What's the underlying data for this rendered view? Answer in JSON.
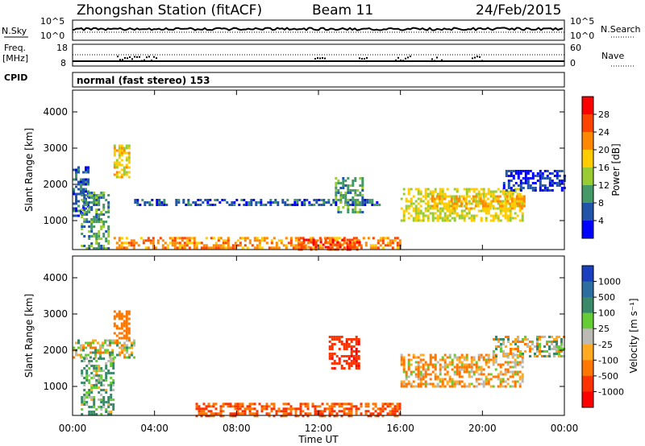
{
  "header": {
    "station": "Zhongshan Station (fitACF)",
    "beam": "Beam 11",
    "date": "24/Feb/2015"
  },
  "top_panels": {
    "nsky_label": "N.Sky",
    "nsearch_label": "N.Search",
    "left_scale_top": "10^5",
    "left_scale_bottom": "10^0",
    "right_scale_top": "10^5",
    "right_scale_bottom": "10^0",
    "freq_label": "Freq.",
    "freq_unit": "[MHz]",
    "freq_top": "18",
    "freq_bottom": "8",
    "nave_label": "Nave",
    "nave_top": "60",
    "nave_bottom": "0",
    "cpid_label": "CPID",
    "cpid_text": "normal (fast stereo) 153"
  },
  "colorbars": {
    "power": {
      "label": "Power [dB]",
      "ticks": [
        "28",
        "24",
        "20",
        "16",
        "12",
        "8",
        "4"
      ],
      "colors": [
        "#ff0000",
        "#ff4400",
        "#ff8800",
        "#ffcc00",
        "#99cc33",
        "#449966",
        "#2255aa",
        "#0000ff"
      ]
    },
    "velocity": {
      "label": "Velocity [m s⁻¹]",
      "ticks": [
        "1000",
        "500",
        "100",
        "25",
        "-25",
        "-100",
        "-500",
        "-1000"
      ],
      "colors": [
        "#1a3fbf",
        "#2d6ea0",
        "#3a8a6a",
        "#66cc33",
        "#bbbbb3",
        "#ffaa22",
        "#ff7700",
        "#ff3300",
        "#ff0000"
      ]
    }
  },
  "chart_data": [
    {
      "type": "heatmap",
      "name": "Power",
      "xlabel": "",
      "ylabel": "Slant Range [km]",
      "yticks": [
        1000,
        2000,
        3000,
        4000
      ],
      "ylim": [
        200,
        4600
      ],
      "xlim_hours": [
        0,
        24
      ],
      "xticks": [
        "00:00",
        "04:00",
        "08:00",
        "12:00",
        "16:00",
        "20:00",
        "00:00"
      ],
      "echo_regions": [
        {
          "t0": 0.0,
          "t1": 0.8,
          "r0": 1100,
          "r1": 2500,
          "value": 8
        },
        {
          "t0": 0.4,
          "t1": 1.8,
          "r0": 200,
          "r1": 1800,
          "value": 12
        },
        {
          "t0": 2.0,
          "t1": 2.8,
          "r0": 2200,
          "r1": 3100,
          "value": 20
        },
        {
          "t0": 3.0,
          "t1": 15.0,
          "r0": 1400,
          "r1": 1600,
          "value": 8
        },
        {
          "t0": 2.0,
          "t1": 16.0,
          "r0": 250,
          "r1": 550,
          "value": 24
        },
        {
          "t0": 11.0,
          "t1": 14.0,
          "r0": 200,
          "r1": 500,
          "value": 28
        },
        {
          "t0": 12.8,
          "t1": 14.2,
          "r0": 1200,
          "r1": 2200,
          "value": 12
        },
        {
          "t0": 16.0,
          "t1": 22.0,
          "r0": 1000,
          "r1": 1900,
          "value": 18
        },
        {
          "t0": 17.5,
          "t1": 22.0,
          "r0": 1300,
          "r1": 1700,
          "value": 22
        },
        {
          "t0": 21.0,
          "t1": 24.0,
          "r0": 1800,
          "r1": 2400,
          "value": 6
        }
      ]
    },
    {
      "type": "heatmap",
      "name": "Velocity",
      "xlabel": "Time UT",
      "ylabel": "Slant Range [km]",
      "yticks": [
        1000,
        2000,
        3000,
        4000
      ],
      "ylim": [
        200,
        4600
      ],
      "xlim_hours": [
        0,
        24
      ],
      "xticks": [
        "00:00",
        "04:00",
        "08:00",
        "12:00",
        "16:00",
        "20:00",
        "00:00"
      ],
      "echo_regions": [
        {
          "t0": 0.0,
          "t1": 3.0,
          "r0": 1800,
          "r1": 2300,
          "value": 0
        },
        {
          "t0": 0.4,
          "t1": 2.0,
          "r0": 200,
          "r1": 1800,
          "value": 100
        },
        {
          "t0": 2.0,
          "t1": 2.8,
          "r0": 2300,
          "r1": 3100,
          "value": -300
        },
        {
          "t0": 6.0,
          "t1": 16.0,
          "r0": 200,
          "r1": 550,
          "value": -500
        },
        {
          "t0": 12.5,
          "t1": 14.0,
          "r0": 1500,
          "r1": 2400,
          "value": -900
        },
        {
          "t0": 16.0,
          "t1": 22.0,
          "r0": 1000,
          "r1": 1900,
          "value": -80
        },
        {
          "t0": 20.5,
          "t1": 24.0,
          "r0": 1800,
          "r1": 2400,
          "value": 0
        }
      ]
    }
  ]
}
